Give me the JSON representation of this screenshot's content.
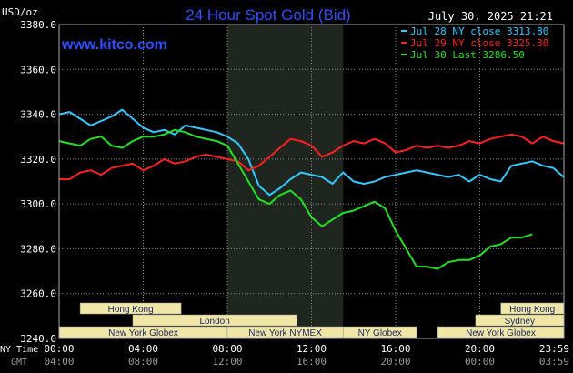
{
  "chart_data": {
    "type": "line",
    "title": "24 Hour Spot Gold (Bid)",
    "ylabel": "USD/oz",
    "ylim": [
      3240,
      3380
    ],
    "xlim": [
      0,
      24
    ],
    "timestamp": "July 30, 2025 21:21",
    "brand": "www.kitco.com",
    "colors": {
      "background": "#000000",
      "grid": "#888888",
      "title": "#2b50ff",
      "brand": "#2b50ff",
      "session_shade": "#1f261f",
      "session_bar": "#f0e6a6",
      "session_text": "#1a2a6c"
    },
    "yticks": [
      "3380.0",
      "3360.0",
      "3340.0",
      "3320.0",
      "3300.0",
      "3280.0",
      "3260.0",
      "3240.0"
    ],
    "xtick_row_ny_label": "NY Time",
    "xtick_row_gmt_label": "GMT",
    "xticks_ny": [
      "00:00",
      "04:00",
      "08:00",
      "12:00",
      "16:00",
      "20:00",
      "23:59"
    ],
    "xticks_gmt": [
      "04:00",
      "08:00",
      "12:00",
      "16:00",
      "20:00",
      "00:00",
      "03:59"
    ],
    "shaded_session": [
      8.0,
      13.5
    ],
    "sessions": [
      {
        "name": "Hong Kong",
        "start": 1.0,
        "end": 5.8,
        "row": 0
      },
      {
        "name": "London",
        "start": 3.5,
        "end": 11.3,
        "row": 1
      },
      {
        "name": "New York Globex",
        "start": 0.0,
        "end": 8.0,
        "row": 2
      },
      {
        "name": "New York NYMEX",
        "start": 8.0,
        "end": 13.5,
        "row": 2
      },
      {
        "name": "NY Globex",
        "start": 13.5,
        "end": 17.0,
        "row": 2
      },
      {
        "name": "Hong Kong",
        "start": 21.0,
        "end": 23.99,
        "row": 0
      },
      {
        "name": "Sydney",
        "start": 19.8,
        "end": 23.99,
        "row": 1
      },
      {
        "name": "New York Globex",
        "start": 18.0,
        "end": 23.99,
        "row": 2
      }
    ],
    "series": [
      {
        "name": "Jul 28 NY close 3313.80",
        "color": "#33c8ff",
        "x": [
          0,
          0.5,
          1,
          1.5,
          2,
          2.5,
          3,
          3.5,
          4,
          4.5,
          5,
          5.5,
          6,
          6.5,
          7,
          7.5,
          8,
          8.5,
          9,
          9.5,
          10,
          10.5,
          11,
          11.5,
          12,
          12.5,
          13,
          13.5,
          14,
          14.5,
          15,
          15.5,
          16,
          16.5,
          17,
          17.5,
          18,
          18.5,
          19,
          19.5,
          20,
          20.5,
          21,
          21.5,
          22,
          22.5,
          23,
          23.5,
          23.99
        ],
        "y": [
          3340,
          3341,
          3338,
          3335,
          3337,
          3339,
          3342,
          3338,
          3334,
          3332,
          3333,
          3331,
          3335,
          3334,
          3333,
          3332,
          3330,
          3327,
          3320,
          3308,
          3304,
          3307,
          3311,
          3314,
          3313,
          3312,
          3309,
          3314,
          3310,
          3309,
          3310,
          3312,
          3313,
          3314,
          3315,
          3314,
          3313,
          3312,
          3313,
          3310,
          3313,
          3311,
          3310,
          3317,
          3318,
          3319,
          3317,
          3316,
          3312
        ]
      },
      {
        "name": "Jul 29 NY close 3325.30",
        "color": "#ff2020",
        "x": [
          0,
          0.5,
          1,
          1.5,
          2,
          2.5,
          3,
          3.5,
          4,
          4.5,
          5,
          5.5,
          6,
          6.5,
          7,
          7.5,
          8,
          8.5,
          9,
          9.5,
          10,
          10.5,
          11,
          11.5,
          12,
          12.5,
          13,
          13.5,
          14,
          14.5,
          15,
          15.5,
          16,
          16.5,
          17,
          17.5,
          18,
          18.5,
          19,
          19.5,
          20,
          20.5,
          21,
          21.5,
          22,
          22.5,
          23,
          23.5,
          23.99
        ],
        "y": [
          3311,
          3311,
          3314,
          3315,
          3313,
          3316,
          3317,
          3318,
          3315,
          3317,
          3320,
          3318,
          3319,
          3321,
          3322,
          3321,
          3320,
          3319,
          3315,
          3317,
          3321,
          3325,
          3329,
          3328,
          3326,
          3321,
          3323,
          3326,
          3328,
          3327,
          3329,
          3327,
          3323,
          3324,
          3326,
          3325,
          3326,
          3325,
          3326,
          3328,
          3327,
          3329,
          3330,
          3331,
          3330,
          3327,
          3330,
          3328,
          3327
        ]
      },
      {
        "name": "Jul 30 Last 3286.50",
        "color": "#22e022",
        "x": [
          0,
          0.5,
          1,
          1.5,
          2,
          2.5,
          3,
          3.5,
          4,
          4.5,
          5,
          5.5,
          6,
          6.5,
          7,
          7.5,
          8,
          8.5,
          9,
          9.5,
          10,
          10.5,
          11,
          11.5,
          12,
          12.5,
          13,
          13.5,
          14,
          14.5,
          15,
          15.5,
          16,
          16.5,
          17,
          17.5,
          18,
          18.5,
          19,
          19.5,
          20,
          20.5,
          21,
          21.5,
          22,
          22.5,
          23,
          23.5,
          23.99
        ],
        "y": [
          3328,
          3327,
          3326,
          3329,
          3330,
          3326,
          3325,
          3328,
          3330,
          3330,
          3331,
          3333,
          3332,
          3330,
          3329,
          3328,
          3326,
          3318,
          3310,
          3302,
          3300,
          3304,
          3306,
          3302,
          3294,
          3290,
          3293,
          3296,
          3297,
          3299,
          3301,
          3298,
          3288,
          3280,
          3272,
          3272,
          3271,
          3274,
          3275,
          3275,
          3277,
          3281,
          3282,
          3285,
          3285,
          3286.5,
          null,
          null,
          null
        ]
      }
    ]
  }
}
